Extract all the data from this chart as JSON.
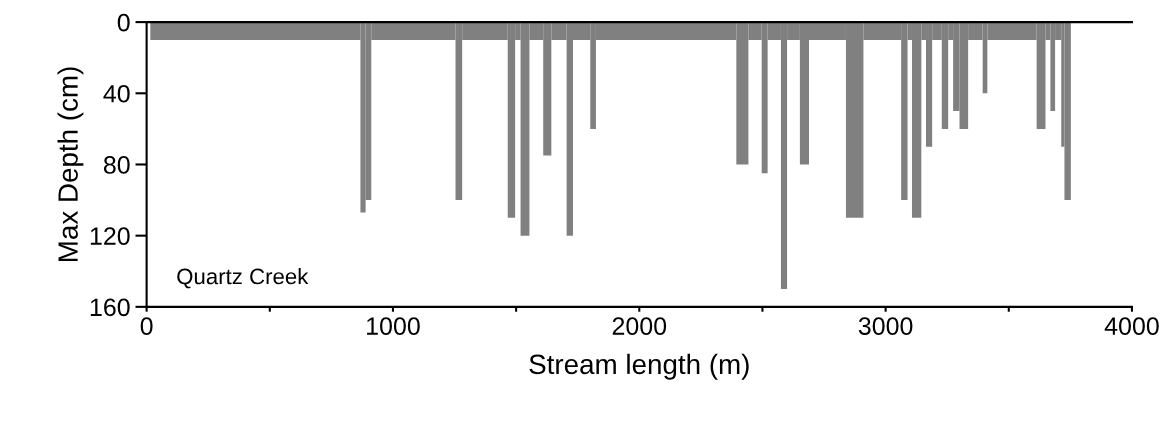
{
  "chart_data": {
    "type": "histogram",
    "xlabel": "Stream length (m)",
    "ylabel": "Max Depth (cm)",
    "annotations": [
      "Quartz Creek"
    ],
    "color": "#808080",
    "bins": [
      15,
      868,
      889,
      912,
      1254,
      1281,
      1466,
      1496,
      1518,
      1554,
      1610,
      1643,
      1705,
      1731,
      1801,
      1824,
      2394,
      2443,
      2497,
      2521,
      2575,
      2600,
      2652,
      2689,
      2839,
      2910,
      3063,
      3089,
      3107,
      3145,
      3164,
      3189,
      3228,
      3254,
      3274,
      3300,
      3335,
      3394,
      3413,
      3613,
      3649,
      3669,
      3688,
      3713,
      3726,
      3752
    ],
    "values": [
      10,
      107,
      100,
      10,
      100,
      10,
      110,
      10,
      120,
      10,
      75,
      10,
      120,
      10,
      60,
      10,
      80,
      10,
      85,
      10,
      150,
      10,
      80,
      10,
      110,
      10,
      100,
      10,
      110,
      10,
      70,
      10,
      60,
      10,
      50,
      60,
      10,
      40,
      10,
      60,
      10,
      50,
      10,
      70,
      100
    ],
    "xlim": [
      0,
      4000
    ],
    "xticks": [
      0,
      {
        "value": 500,
        "label": null
      },
      1000,
      {
        "value": 1500,
        "label": null
      },
      2000,
      {
        "value": 2500,
        "label": null
      },
      3000,
      {
        "value": 3500,
        "label": null
      },
      4000
    ],
    "ylim": [
      160,
      0
    ],
    "yticks": [
      0,
      40,
      80,
      120,
      160
    ],
    "grid": false,
    "legend": false
  }
}
